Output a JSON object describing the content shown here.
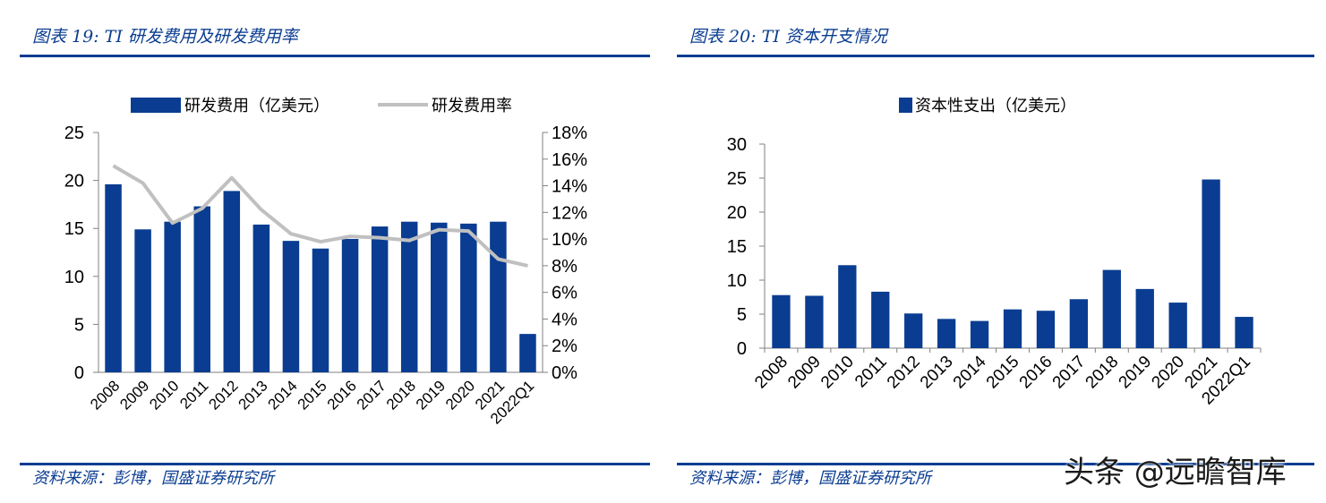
{
  "left": {
    "title": "图表 19:  TI 研发费用及研发费用率",
    "source": "资料来源：彭博，国盛证券研究所"
  },
  "right": {
    "title": "图表 20:  TI 资本开支情况",
    "source": "资料来源：彭博，国盛证券研究所"
  },
  "watermark": "头条 @远瞻智库",
  "colors": {
    "bar": "#0a3d91",
    "line": "#c0c0c0",
    "axis": "#808080",
    "title": "#0a3d91"
  },
  "chart_data": [
    {
      "type": "bar",
      "categories": [
        "2008",
        "2009",
        "2010",
        "2011",
        "2012",
        "2013",
        "2014",
        "2015",
        "2016",
        "2017",
        "2018",
        "2019",
        "2020",
        "2021",
        "2022Q1"
      ],
      "series": [
        {
          "name": "研发费用（亿美元）",
          "axis": "left",
          "type": "bar",
          "values": [
            19.6,
            14.9,
            15.7,
            17.3,
            18.9,
            15.4,
            13.7,
            12.9,
            13.9,
            15.2,
            15.7,
            15.6,
            15.5,
            15.7,
            4.0
          ]
        },
        {
          "name": "研发费用率",
          "axis": "right",
          "type": "line",
          "values": [
            15.5,
            14.2,
            11.2,
            12.3,
            14.6,
            12.2,
            10.4,
            9.8,
            10.2,
            10.1,
            9.9,
            10.7,
            10.6,
            8.5,
            8.0
          ]
        }
      ],
      "ylim": [
        0,
        25
      ],
      "yticks": [
        "0",
        "5",
        "10",
        "15",
        "20",
        "25"
      ],
      "y2lim": [
        0,
        18
      ],
      "y2ticks": [
        "0%",
        "2%",
        "4%",
        "6%",
        "8%",
        "10%",
        "12%",
        "14%",
        "16%",
        "18%"
      ],
      "legend": "top",
      "grid": false
    },
    {
      "type": "bar",
      "categories": [
        "2008",
        "2009",
        "2010",
        "2011",
        "2012",
        "2013",
        "2014",
        "2015",
        "2016",
        "2017",
        "2018",
        "2019",
        "2020",
        "2021",
        "2022Q1"
      ],
      "series": [
        {
          "name": "资本性支出（亿美元）",
          "values": [
            7.8,
            7.7,
            12.2,
            8.3,
            5.1,
            4.3,
            4.0,
            5.7,
            5.5,
            7.2,
            11.5,
            8.7,
            6.7,
            24.8,
            4.6
          ]
        }
      ],
      "ylim": [
        0,
        30
      ],
      "yticks": [
        "0",
        "5",
        "10",
        "15",
        "20",
        "25",
        "30"
      ],
      "legend": "top",
      "grid": false
    }
  ]
}
